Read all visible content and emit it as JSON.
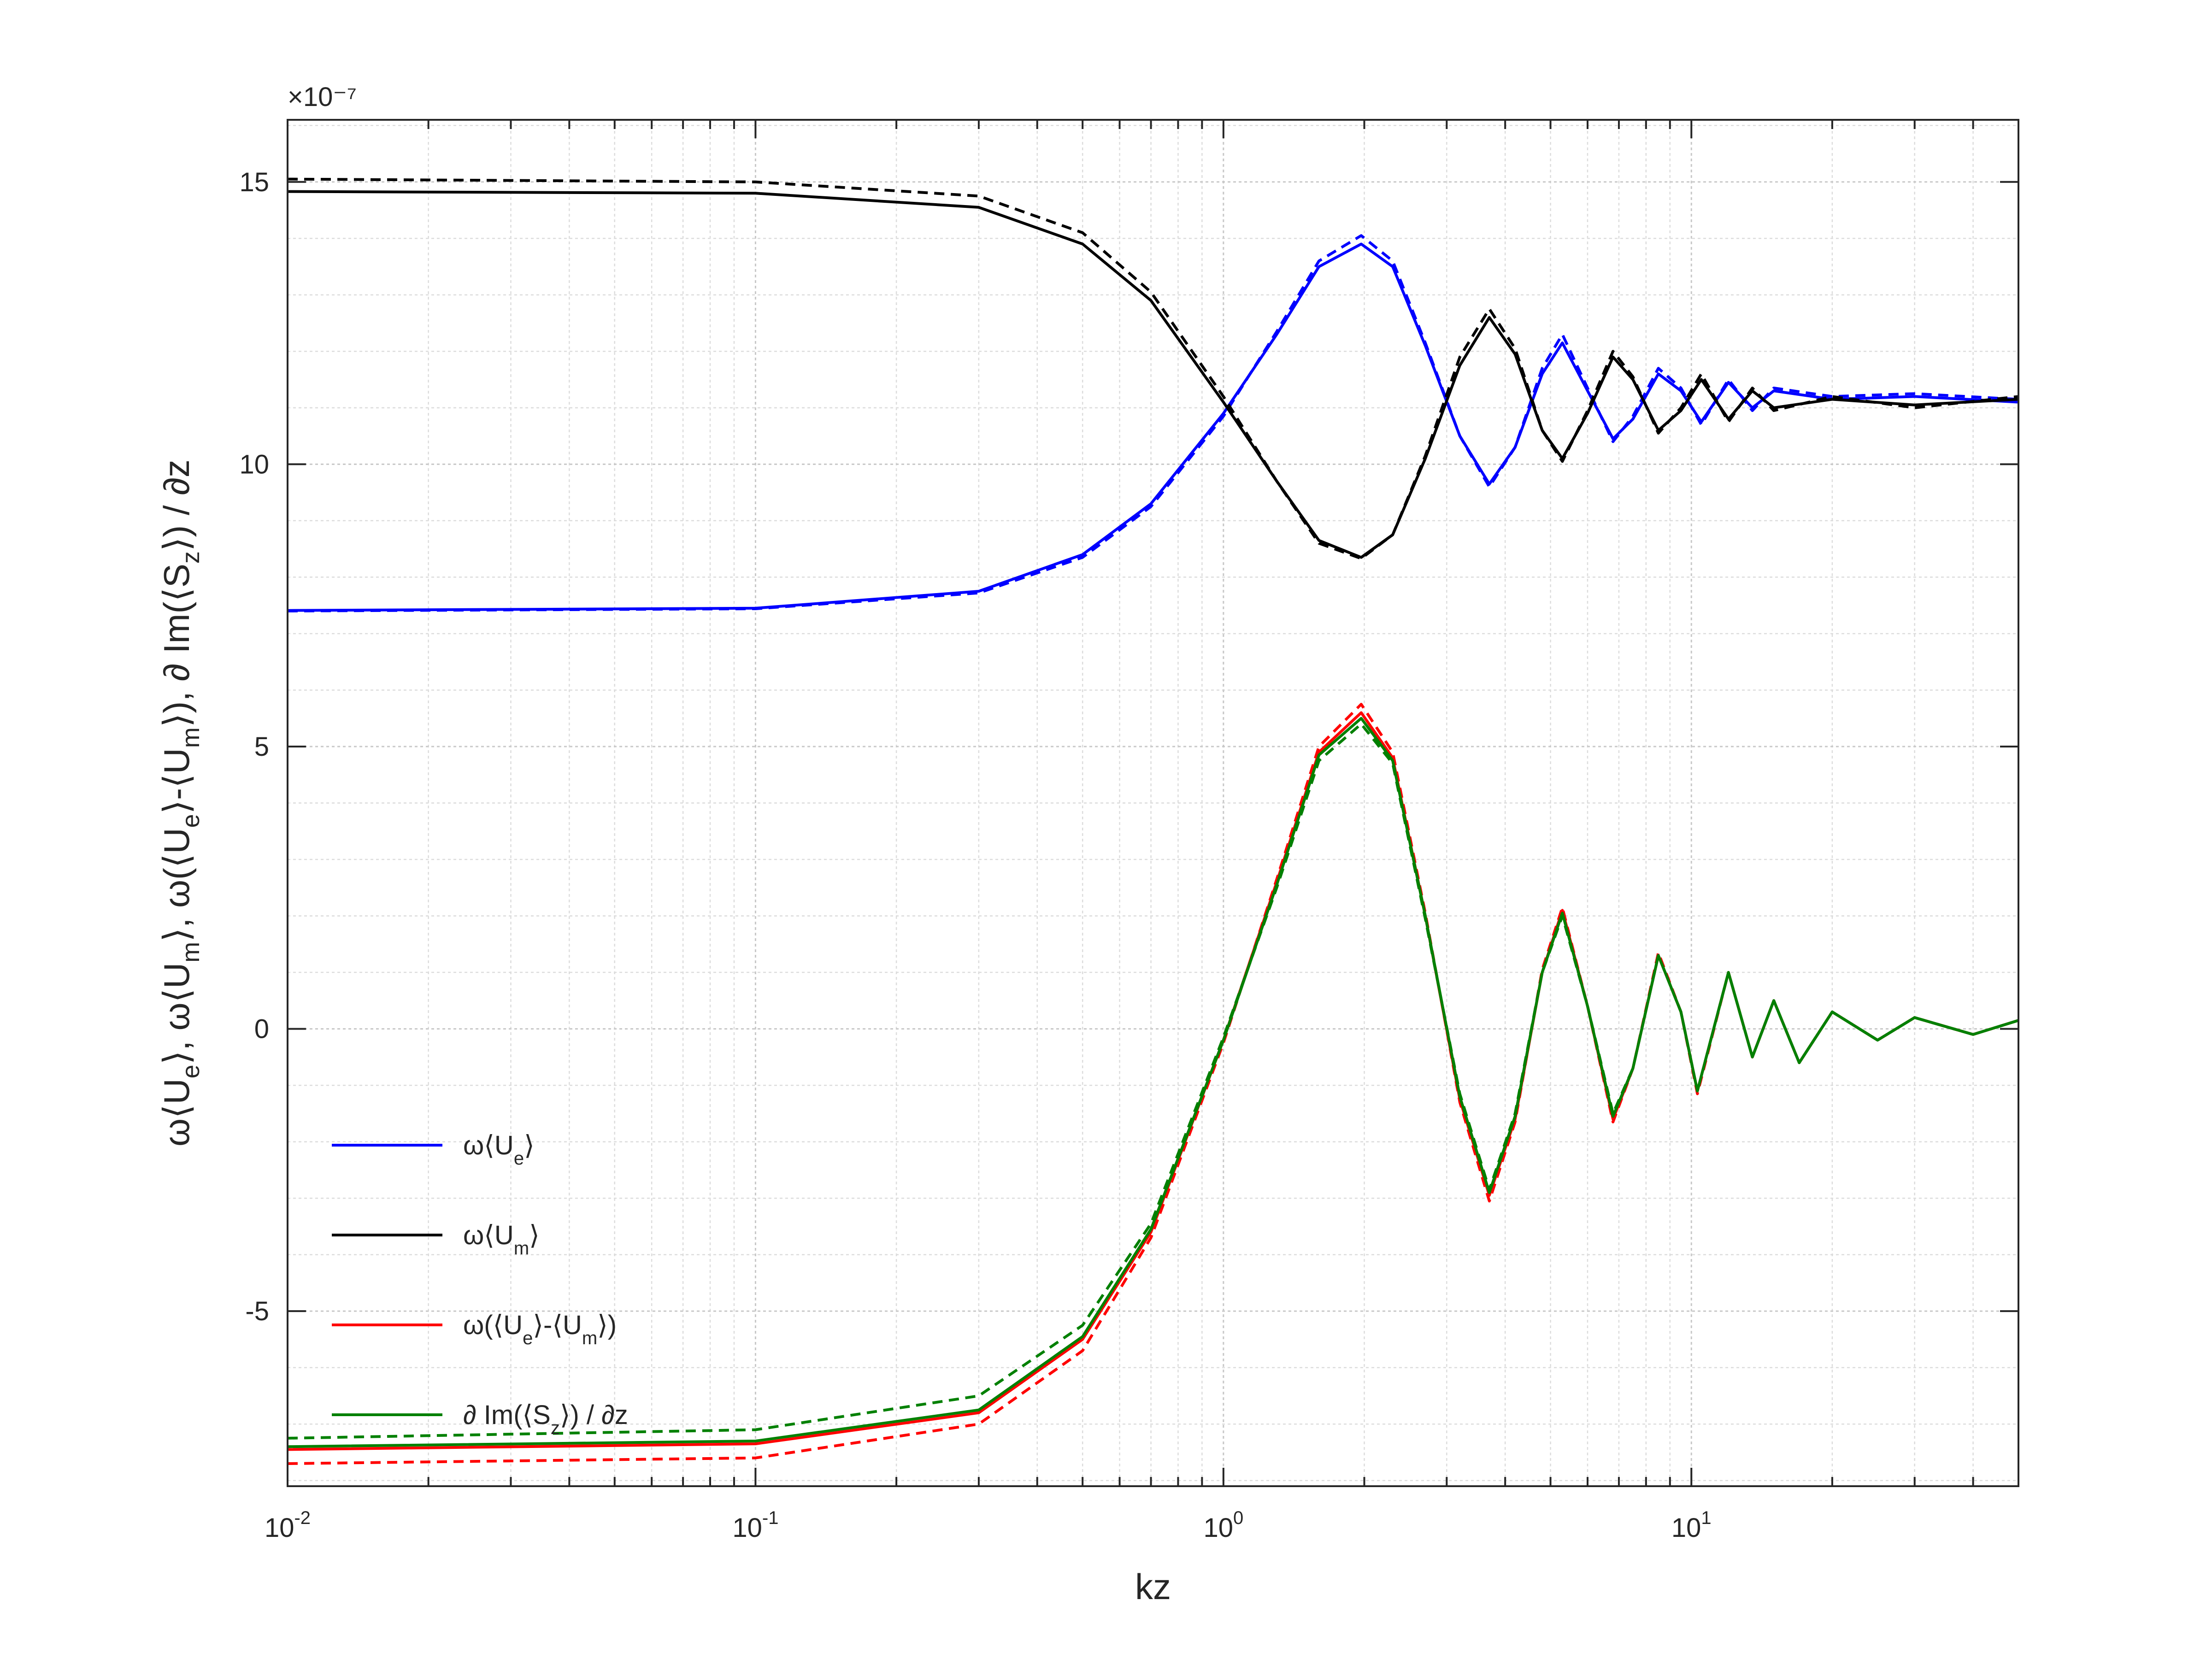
{
  "chart_data": {
    "type": "line",
    "title": "",
    "xlabel": "kz",
    "ylabel": "ω⟨U_e⟩, ω⟨U_m⟩, ω(⟨U_e⟩-⟨U_m⟩), ∂ Im(⟨S_z⟩) / ∂z",
    "x_scale": "log",
    "xlim": [
      0.01,
      50
    ],
    "ylim": [
      -8.1e-07,
      1.61e-06
    ],
    "y_multiplier": "×10⁻⁷",
    "x_ticks": [
      {
        "value": 0.01,
        "base": "10",
        "exp": "-2"
      },
      {
        "value": 0.1,
        "base": "10",
        "exp": "-1"
      },
      {
        "value": 1,
        "base": "10",
        "exp": "0"
      },
      {
        "value": 10,
        "base": "10",
        "exp": "1"
      }
    ],
    "y_ticks": [
      {
        "value": 1.5e-06,
        "label": "15"
      },
      {
        "value": 1e-06,
        "label": "10"
      },
      {
        "value": 5e-07,
        "label": "5"
      },
      {
        "value": 0,
        "label": "0"
      },
      {
        "value": -5e-07,
        "label": "-5"
      }
    ],
    "grid": true,
    "legend_position": "bottom-left",
    "note": "Solid and dashed variants of each series are drawn in the same colour",
    "series": [
      {
        "name": "ω⟨U_e⟩",
        "color": "#0000ff",
        "style": "solid",
        "points": [
          [
            0.01,
            7.41e-07
          ],
          [
            0.1,
            7.45e-07
          ],
          [
            0.3,
            7.75e-07
          ],
          [
            0.5,
            8.4e-07
          ],
          [
            0.7,
            9.3e-07
          ],
          [
            1.0,
            1.09e-06
          ],
          [
            1.3,
            1.23e-06
          ],
          [
            1.6,
            1.35e-06
          ],
          [
            1.97,
            1.39e-06
          ],
          [
            2.3,
            1.35e-06
          ],
          [
            2.7,
            1.21e-06
          ],
          [
            3.2,
            1.05e-06
          ],
          [
            3.7,
            9.65e-07
          ],
          [
            4.2,
            1.03e-06
          ],
          [
            4.8,
            1.16e-06
          ],
          [
            5.3,
            1.215e-06
          ],
          [
            6.0,
            1.13e-06
          ],
          [
            6.8,
            1.045e-06
          ],
          [
            7.5,
            1.08e-06
          ],
          [
            8.5,
            1.16e-06
          ],
          [
            9.5,
            1.13e-06
          ],
          [
            10.5,
            1.075e-06
          ],
          [
            12,
            1.145e-06
          ],
          [
            13.5,
            1.1e-06
          ],
          [
            15,
            1.13e-06
          ],
          [
            20,
            1.115e-06
          ],
          [
            30,
            1.12e-06
          ],
          [
            50,
            1.11e-06
          ]
        ]
      },
      {
        "name": "",
        "color": "#0000ff",
        "style": "dashed",
        "points": [
          [
            0.01,
            7.4e-07
          ],
          [
            0.1,
            7.44e-07
          ],
          [
            0.3,
            7.72e-07
          ],
          [
            0.5,
            8.35e-07
          ],
          [
            0.7,
            9.25e-07
          ],
          [
            1.0,
            1.085e-06
          ],
          [
            1.3,
            1.235e-06
          ],
          [
            1.6,
            1.36e-06
          ],
          [
            1.97,
            1.405e-06
          ],
          [
            2.3,
            1.36e-06
          ],
          [
            2.7,
            1.215e-06
          ],
          [
            3.2,
            1.05e-06
          ],
          [
            3.7,
            9.6e-07
          ],
          [
            4.2,
            1.03e-06
          ],
          [
            4.8,
            1.17e-06
          ],
          [
            5.3,
            1.23e-06
          ],
          [
            6.0,
            1.135e-06
          ],
          [
            6.8,
            1.04e-06
          ],
          [
            7.5,
            1.085e-06
          ],
          [
            8.5,
            1.17e-06
          ],
          [
            9.5,
            1.135e-06
          ],
          [
            10.5,
            1.07e-06
          ],
          [
            12,
            1.15e-06
          ],
          [
            13.5,
            1.095e-06
          ],
          [
            15,
            1.135e-06
          ],
          [
            20,
            1.12e-06
          ],
          [
            30,
            1.125e-06
          ],
          [
            50,
            1.115e-06
          ]
        ]
      },
      {
        "name": "ω⟨U_m⟩",
        "color": "#000000",
        "style": "solid",
        "points": [
          [
            0.01,
            1.483e-06
          ],
          [
            0.1,
            1.48e-06
          ],
          [
            0.3,
            1.455e-06
          ],
          [
            0.5,
            1.39e-06
          ],
          [
            0.7,
            1.29e-06
          ],
          [
            1.0,
            1.11e-06
          ],
          [
            1.3,
            9.7e-07
          ],
          [
            1.6,
            8.65e-07
          ],
          [
            1.97,
            8.35e-07
          ],
          [
            2.3,
            8.75e-07
          ],
          [
            2.7,
            1.01e-06
          ],
          [
            3.2,
            1.175e-06
          ],
          [
            3.7,
            1.26e-06
          ],
          [
            4.2,
            1.195e-06
          ],
          [
            4.8,
            1.06e-06
          ],
          [
            5.3,
            1.01e-06
          ],
          [
            6.0,
            1.09e-06
          ],
          [
            6.8,
            1.19e-06
          ],
          [
            7.5,
            1.15e-06
          ],
          [
            8.5,
            1.06e-06
          ],
          [
            9.5,
            1.095e-06
          ],
          [
            10.5,
            1.15e-06
          ],
          [
            12,
            1.08e-06
          ],
          [
            13.5,
            1.13e-06
          ],
          [
            15,
            1.1e-06
          ],
          [
            20,
            1.115e-06
          ],
          [
            30,
            1.105e-06
          ],
          [
            50,
            1.115e-06
          ]
        ]
      },
      {
        "name": "",
        "color": "#000000",
        "style": "dashed",
        "points": [
          [
            0.01,
            1.505e-06
          ],
          [
            0.1,
            1.5e-06
          ],
          [
            0.3,
            1.475e-06
          ],
          [
            0.5,
            1.41e-06
          ],
          [
            0.7,
            1.305e-06
          ],
          [
            1.0,
            1.12e-06
          ],
          [
            1.3,
            9.7e-07
          ],
          [
            1.6,
            8.6e-07
          ],
          [
            1.97,
            8.33e-07
          ],
          [
            2.3,
            8.75e-07
          ],
          [
            2.7,
            1.015e-06
          ],
          [
            3.2,
            1.19e-06
          ],
          [
            3.7,
            1.275e-06
          ],
          [
            4.2,
            1.205e-06
          ],
          [
            4.8,
            1.06e-06
          ],
          [
            5.3,
            1.005e-06
          ],
          [
            6.0,
            1.095e-06
          ],
          [
            6.8,
            1.2e-06
          ],
          [
            7.5,
            1.155e-06
          ],
          [
            8.5,
            1.055e-06
          ],
          [
            9.5,
            1.1e-06
          ],
          [
            10.5,
            1.16e-06
          ],
          [
            12,
            1.075e-06
          ],
          [
            13.5,
            1.135e-06
          ],
          [
            15,
            1.095e-06
          ],
          [
            20,
            1.12e-06
          ],
          [
            30,
            1.1e-06
          ],
          [
            50,
            1.12e-06
          ]
        ]
      },
      {
        "name": "ω(⟨U_e⟩-⟨U_m⟩)",
        "color": "#ff0000",
        "style": "solid",
        "points": [
          [
            0.01,
            -7.45e-07
          ],
          [
            0.1,
            -7.35e-07
          ],
          [
            0.3,
            -6.8e-07
          ],
          [
            0.5,
            -5.5e-07
          ],
          [
            0.7,
            -3.6e-07
          ],
          [
            1.0,
            -2e-08
          ],
          [
            1.3,
            2.6e-07
          ],
          [
            1.6,
            4.9e-07
          ],
          [
            1.97,
            5.6e-07
          ],
          [
            2.3,
            4.8e-07
          ],
          [
            2.7,
            2e-07
          ],
          [
            3.2,
            -1.25e-07
          ],
          [
            3.7,
            -2.95e-07
          ],
          [
            4.2,
            -1.6e-07
          ],
          [
            4.8,
            1e-07
          ],
          [
            5.3,
            2.1e-07
          ],
          [
            6.0,
            4e-08
          ],
          [
            6.8,
            -1.6e-07
          ],
          [
            7.5,
            -7e-08
          ],
          [
            8.5,
            1.3e-07
          ],
          [
            9.5,
            3e-08
          ],
          [
            10.3,
            -1.1e-07
          ],
          [
            12,
            1e-07
          ],
          [
            13.5,
            -5e-08
          ],
          [
            15,
            5e-08
          ],
          [
            17,
            -6e-08
          ],
          [
            20,
            3e-08
          ],
          [
            25,
            -2e-08
          ],
          [
            30,
            2e-08
          ],
          [
            40,
            -1e-08
          ],
          [
            50,
            1.5e-08
          ]
        ]
      },
      {
        "name": "",
        "color": "#ff0000",
        "style": "dashed",
        "points": [
          [
            0.01,
            -7.7e-07
          ],
          [
            0.1,
            -7.6e-07
          ],
          [
            0.3,
            -7e-07
          ],
          [
            0.5,
            -5.7e-07
          ],
          [
            0.7,
            -3.7e-07
          ],
          [
            1.0,
            -2.5e-08
          ],
          [
            1.3,
            2.65e-07
          ],
          [
            1.6,
            5e-07
          ],
          [
            1.97,
            5.75e-07
          ],
          [
            2.3,
            4.9e-07
          ],
          [
            2.7,
            2.05e-07
          ],
          [
            3.2,
            -1.3e-07
          ],
          [
            3.7,
            -3.05e-07
          ],
          [
            4.2,
            -1.65e-07
          ],
          [
            4.8,
            1.05e-07
          ],
          [
            5.3,
            2.15e-07
          ],
          [
            6.0,
            4e-08
          ],
          [
            6.8,
            -1.65e-07
          ],
          [
            7.5,
            -7e-08
          ],
          [
            8.5,
            1.35e-07
          ],
          [
            9.5,
            3e-08
          ],
          [
            10.3,
            -1.15e-07
          ],
          [
            12,
            1e-07
          ],
          [
            13.5,
            -5e-08
          ],
          [
            15,
            5e-08
          ],
          [
            17,
            -6e-08
          ],
          [
            20,
            3e-08
          ],
          [
            25,
            -2e-08
          ],
          [
            30,
            2e-08
          ],
          [
            40,
            -1e-08
          ],
          [
            50,
            1.5e-08
          ]
        ]
      },
      {
        "name": "∂ Im(⟨S_z⟩) / ∂z",
        "color": "#008000",
        "style": "solid",
        "points": [
          [
            0.01,
            -7.4e-07
          ],
          [
            0.1,
            -7.3e-07
          ],
          [
            0.3,
            -6.75e-07
          ],
          [
            0.5,
            -5.45e-07
          ],
          [
            0.7,
            -3.55e-07
          ],
          [
            1.0,
            -2e-08
          ],
          [
            1.3,
            2.55e-07
          ],
          [
            1.6,
            4.85e-07
          ],
          [
            1.97,
            5.5e-07
          ],
          [
            2.3,
            4.75e-07
          ],
          [
            2.7,
            2e-07
          ],
          [
            3.2,
            -1.2e-07
          ],
          [
            3.7,
            -2.9e-07
          ],
          [
            4.2,
            -1.55e-07
          ],
          [
            4.8,
            1e-07
          ],
          [
            5.3,
            2.05e-07
          ],
          [
            6.0,
            4e-08
          ],
          [
            6.8,
            -1.55e-07
          ],
          [
            7.5,
            -7e-08
          ],
          [
            8.5,
            1.3e-07
          ],
          [
            9.5,
            3e-08
          ],
          [
            10.3,
            -1.1e-07
          ],
          [
            12,
            1e-07
          ],
          [
            13.5,
            -5e-08
          ],
          [
            15,
            5e-08
          ],
          [
            17,
            -6e-08
          ],
          [
            20,
            3e-08
          ],
          [
            25,
            -2e-08
          ],
          [
            30,
            2e-08
          ],
          [
            40,
            -1e-08
          ],
          [
            50,
            1.5e-08
          ]
        ]
      },
      {
        "name": "",
        "color": "#008000",
        "style": "dashed",
        "points": [
          [
            0.01,
            -7.25e-07
          ],
          [
            0.1,
            -7.1e-07
          ],
          [
            0.3,
            -6.5e-07
          ],
          [
            0.5,
            -5.25e-07
          ],
          [
            0.7,
            -3.45e-07
          ],
          [
            1.0,
            -1.5e-08
          ],
          [
            1.3,
            2.5e-07
          ],
          [
            1.6,
            4.75e-07
          ],
          [
            1.97,
            5.4e-07
          ],
          [
            2.3,
            4.7e-07
          ],
          [
            2.7,
            1.95e-07
          ],
          [
            3.2,
            -1.15e-07
          ],
          [
            3.7,
            -2.85e-07
          ],
          [
            4.2,
            -1.5e-07
          ],
          [
            4.8,
            1e-07
          ],
          [
            5.3,
            2e-07
          ],
          [
            6.0,
            4e-08
          ],
          [
            6.8,
            -1.5e-07
          ],
          [
            7.5,
            -7e-08
          ],
          [
            8.5,
            1.3e-07
          ],
          [
            9.5,
            3e-08
          ],
          [
            10.3,
            -1.1e-07
          ],
          [
            12,
            1e-07
          ],
          [
            13.5,
            -5e-08
          ],
          [
            15,
            5e-08
          ],
          [
            17,
            -6e-08
          ],
          [
            20,
            3e-08
          ],
          [
            25,
            -2e-08
          ],
          [
            30,
            2e-08
          ],
          [
            40,
            -1e-08
          ],
          [
            50,
            1.5e-08
          ]
        ]
      }
    ],
    "legend": {
      "entries": [
        {
          "color": "#0000ff",
          "text": "ω⟨U",
          "sub": "e",
          "tail": "⟩"
        },
        {
          "color": "#000000",
          "text": "ω⟨U",
          "sub": "m",
          "tail": "⟩"
        },
        {
          "color": "#ff0000",
          "text": "ω(⟨U",
          "sub": "e",
          "mid": "⟩-⟨U",
          "sub2": "m",
          "tail": "⟩)"
        },
        {
          "color": "#008000",
          "text": "∂ Im(⟨S",
          "sub": "z",
          "tail": "⟩) / ∂z"
        }
      ]
    }
  }
}
